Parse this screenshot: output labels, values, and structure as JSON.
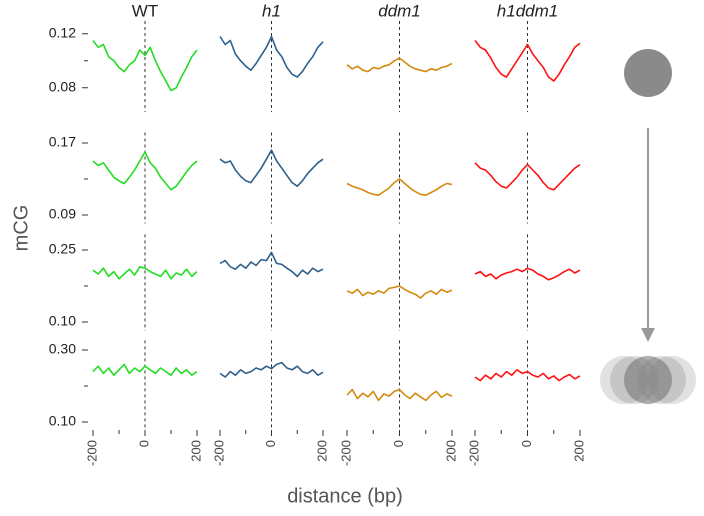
{
  "xlabel": "distance (bp)",
  "ylabel": "mCG",
  "columns": [
    {
      "name": "WT",
      "color": "#22dd22",
      "italic": false
    },
    {
      "name": "h1",
      "color": "#2f5f8a",
      "italic": true
    },
    {
      "name": "ddm1",
      "color": "#d4890f",
      "italic": true
    },
    {
      "name": "h1ddm1",
      "color": "#ff1111",
      "italic": true
    }
  ],
  "x": [
    -200,
    -180,
    -160,
    -140,
    -120,
    -100,
    -80,
    -60,
    -40,
    -20,
    0,
    20,
    40,
    60,
    80,
    100,
    120,
    140,
    160,
    180,
    200
  ],
  "xlim": [
    -200,
    200
  ],
  "xticks": [
    -200,
    0,
    200
  ],
  "minor_xticks": [
    -100,
    100
  ],
  "vline": 0,
  "chart_data": [
    {
      "type": "line",
      "ylim": [
        0.065,
        0.125
      ],
      "yticks": [
        0.08,
        0.12
      ],
      "minor_yticks": [
        {
          "value": 0.1
        }
      ],
      "series": [
        {
          "values": [
            0.115,
            0.11,
            0.112,
            0.103,
            0.1,
            0.095,
            0.092,
            0.097,
            0.1,
            0.108,
            0.104,
            0.11,
            0.1,
            0.092,
            0.085,
            0.078,
            0.08,
            0.088,
            0.095,
            0.103,
            0.108
          ]
        },
        {
          "values": [
            0.118,
            0.112,
            0.115,
            0.105,
            0.1,
            0.096,
            0.093,
            0.098,
            0.104,
            0.11,
            0.118,
            0.108,
            0.103,
            0.095,
            0.09,
            0.088,
            0.092,
            0.098,
            0.103,
            0.11,
            0.114
          ]
        },
        {
          "values": [
            0.097,
            0.094,
            0.096,
            0.093,
            0.092,
            0.095,
            0.094,
            0.096,
            0.097,
            0.1,
            0.102,
            0.099,
            0.096,
            0.094,
            0.093,
            0.092,
            0.094,
            0.093,
            0.095,
            0.096,
            0.098
          ]
        },
        {
          "values": [
            0.115,
            0.11,
            0.108,
            0.102,
            0.095,
            0.09,
            0.088,
            0.094,
            0.1,
            0.106,
            0.112,
            0.105,
            0.1,
            0.095,
            0.088,
            0.085,
            0.09,
            0.097,
            0.103,
            0.11,
            0.113
          ]
        }
      ]
    },
    {
      "type": "line",
      "ylim": [
        0.085,
        0.175
      ],
      "yticks": [
        0.09,
        0.17
      ],
      "minor_yticks": [
        {
          "value": 0.13
        }
      ],
      "series": [
        {
          "values": [
            0.15,
            0.145,
            0.148,
            0.14,
            0.132,
            0.128,
            0.125,
            0.132,
            0.14,
            0.15,
            0.16,
            0.148,
            0.142,
            0.132,
            0.125,
            0.118,
            0.122,
            0.13,
            0.138,
            0.145,
            0.15
          ]
        },
        {
          "values": [
            0.152,
            0.148,
            0.15,
            0.14,
            0.133,
            0.128,
            0.126,
            0.134,
            0.142,
            0.152,
            0.162,
            0.15,
            0.142,
            0.134,
            0.126,
            0.122,
            0.128,
            0.136,
            0.142,
            0.148,
            0.152
          ]
        },
        {
          "values": [
            0.125,
            0.122,
            0.12,
            0.118,
            0.115,
            0.113,
            0.112,
            0.116,
            0.12,
            0.126,
            0.13,
            0.125,
            0.12,
            0.116,
            0.113,
            0.112,
            0.115,
            0.118,
            0.122,
            0.125,
            0.124
          ]
        },
        {
          "values": [
            0.148,
            0.142,
            0.14,
            0.134,
            0.127,
            0.122,
            0.12,
            0.126,
            0.132,
            0.14,
            0.146,
            0.14,
            0.134,
            0.126,
            0.12,
            0.118,
            0.124,
            0.13,
            0.136,
            0.142,
            0.146
          ]
        }
      ]
    },
    {
      "type": "line",
      "ylim": [
        0.09,
        0.27
      ],
      "yticks": [
        {
          "value": 0.1,
          "label": "0.10"
        },
        0.25
      ],
      "minor_yticks": [
        {
          "value": 0.175
        }
      ],
      "series": [
        {
          "values": [
            0.208,
            0.2,
            0.212,
            0.195,
            0.205,
            0.19,
            0.2,
            0.21,
            0.198,
            0.215,
            0.212,
            0.205,
            0.2,
            0.195,
            0.208,
            0.19,
            0.202,
            0.198,
            0.21,
            0.195,
            0.205
          ]
        },
        {
          "values": [
            0.222,
            0.228,
            0.215,
            0.21,
            0.22,
            0.212,
            0.225,
            0.218,
            0.23,
            0.228,
            0.245,
            0.222,
            0.22,
            0.212,
            0.205,
            0.195,
            0.208,
            0.2,
            0.212,
            0.205,
            0.21
          ]
        },
        {
          "values": [
            0.165,
            0.16,
            0.168,
            0.155,
            0.162,
            0.158,
            0.165,
            0.16,
            0.17,
            0.172,
            0.175,
            0.168,
            0.162,
            0.158,
            0.15,
            0.16,
            0.165,
            0.158,
            0.168,
            0.162,
            0.166
          ]
        },
        {
          "values": [
            0.2,
            0.205,
            0.195,
            0.2,
            0.19,
            0.198,
            0.202,
            0.205,
            0.21,
            0.205,
            0.212,
            0.208,
            0.2,
            0.195,
            0.188,
            0.192,
            0.198,
            0.205,
            0.21,
            0.202,
            0.208
          ]
        }
      ]
    },
    {
      "type": "line",
      "ylim": [
        0.09,
        0.31
      ],
      "yticks": [
        {
          "value": 0.1,
          "label": "0.10"
        },
        {
          "value": 0.3,
          "label": "0.30"
        }
      ],
      "minor_yticks": [
        {
          "value": 0.2
        }
      ],
      "series": [
        {
          "values": [
            0.24,
            0.255,
            0.235,
            0.25,
            0.23,
            0.245,
            0.26,
            0.235,
            0.25,
            0.24,
            0.255,
            0.245,
            0.235,
            0.25,
            0.24,
            0.23,
            0.25,
            0.235,
            0.245,
            0.23,
            0.24
          ]
        },
        {
          "values": [
            0.235,
            0.225,
            0.24,
            0.23,
            0.245,
            0.235,
            0.24,
            0.25,
            0.245,
            0.255,
            0.248,
            0.26,
            0.265,
            0.25,
            0.245,
            0.255,
            0.24,
            0.235,
            0.245,
            0.23,
            0.238
          ]
        },
        {
          "values": [
            0.175,
            0.19,
            0.165,
            0.18,
            0.17,
            0.185,
            0.16,
            0.178,
            0.172,
            0.185,
            0.19,
            0.175,
            0.165,
            0.18,
            0.17,
            0.16,
            0.175,
            0.185,
            0.168,
            0.178,
            0.172
          ]
        },
        {
          "values": [
            0.225,
            0.215,
            0.23,
            0.22,
            0.235,
            0.225,
            0.24,
            0.23,
            0.245,
            0.235,
            0.24,
            0.23,
            0.225,
            0.235,
            0.22,
            0.228,
            0.215,
            0.225,
            0.232,
            0.22,
            0.228
          ]
        }
      ]
    }
  ]
}
